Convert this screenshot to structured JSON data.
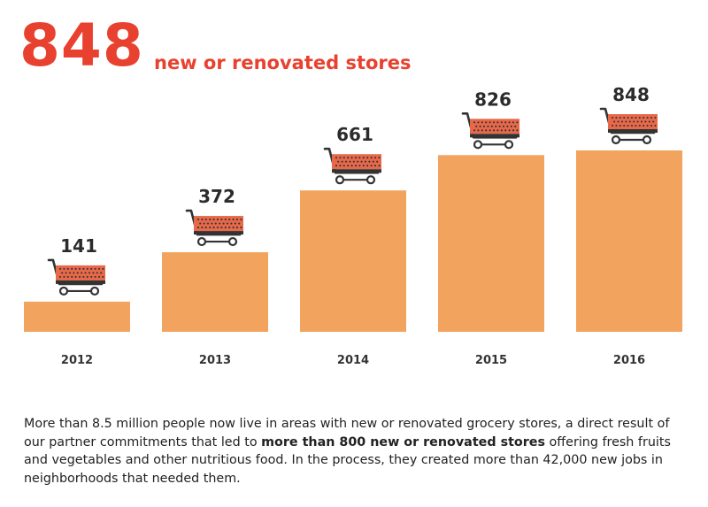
{
  "headline": {
    "number": "848",
    "text": "new or renovated stores"
  },
  "chart_data": {
    "type": "bar",
    "title": "",
    "xlabel": "",
    "ylabel": "",
    "categories": [
      "2012",
      "2013",
      "2014",
      "2015",
      "2016"
    ],
    "values": [
      141,
      372,
      661,
      826,
      848
    ],
    "ylim": [
      0,
      1000
    ],
    "grid": false,
    "bar_color": "#f2a35e",
    "icon": "shopping-cart-icon",
    "cart_basket_color": "#e8684a",
    "cart_frame_color": "#333333"
  },
  "paragraph": {
    "part1": "More than 8.5 million people now live in areas with new or renovated grocery stores, a direct result of our partner commitments that led to ",
    "bold": "more than 800 new or renovated stores",
    "part2": " offering fresh fruits and vegetables and other nutritious food. In the process, they created more than 42,000 new jobs in neighborhoods that needed them."
  }
}
